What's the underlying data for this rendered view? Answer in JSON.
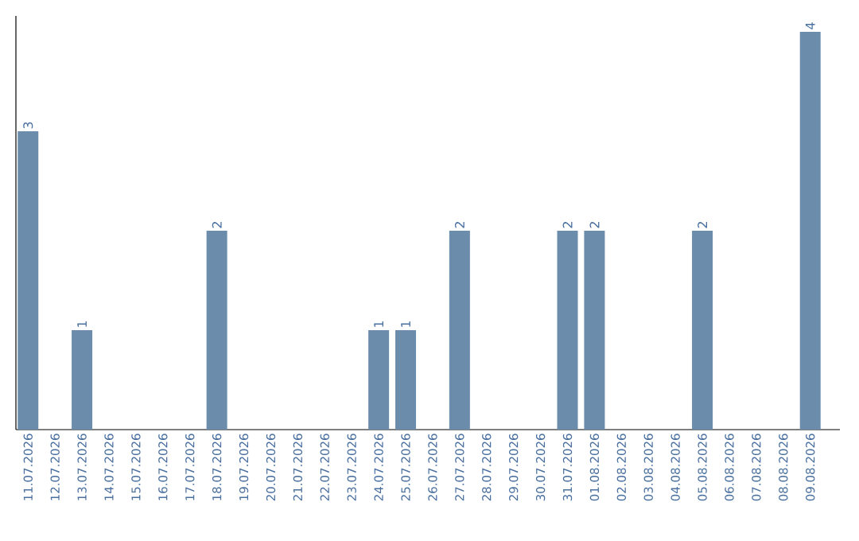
{
  "chart_data": {
    "type": "bar",
    "categories": [
      "11.07.2026",
      "12.07.2026",
      "13.07.2026",
      "14.07.2026",
      "15.07.2026",
      "16.07.2026",
      "17.07.2026",
      "18.07.2026",
      "19.07.2026",
      "20.07.2026",
      "21.07.2026",
      "22.07.2026",
      "23.07.2026",
      "24.07.2026",
      "25.07.2026",
      "26.07.2026",
      "27.07.2026",
      "28.07.2026",
      "29.07.2026",
      "30.07.2026",
      "31.07.2026",
      "01.08.2026",
      "02.08.2026",
      "03.08.2026",
      "04.08.2026",
      "05.08.2026",
      "06.08.2026",
      "07.08.2026",
      "08.08.2026",
      "09.08.2026"
    ],
    "values": [
      3,
      0,
      1,
      0,
      0,
      0,
      0,
      2,
      0,
      0,
      0,
      0,
      0,
      1,
      1,
      0,
      2,
      0,
      0,
      0,
      2,
      2,
      0,
      0,
      0,
      2,
      0,
      0,
      0,
      4
    ],
    "value_labels": [
      "3",
      null,
      "1",
      null,
      null,
      null,
      null,
      "2",
      null,
      null,
      null,
      null,
      null,
      "1",
      "1",
      null,
      "2",
      null,
      null,
      null,
      "2",
      "2",
      null,
      null,
      null,
      "2",
      null,
      null,
      null,
      "4"
    ],
    "color": "#6b8cab",
    "tick_labels": "x"
  }
}
